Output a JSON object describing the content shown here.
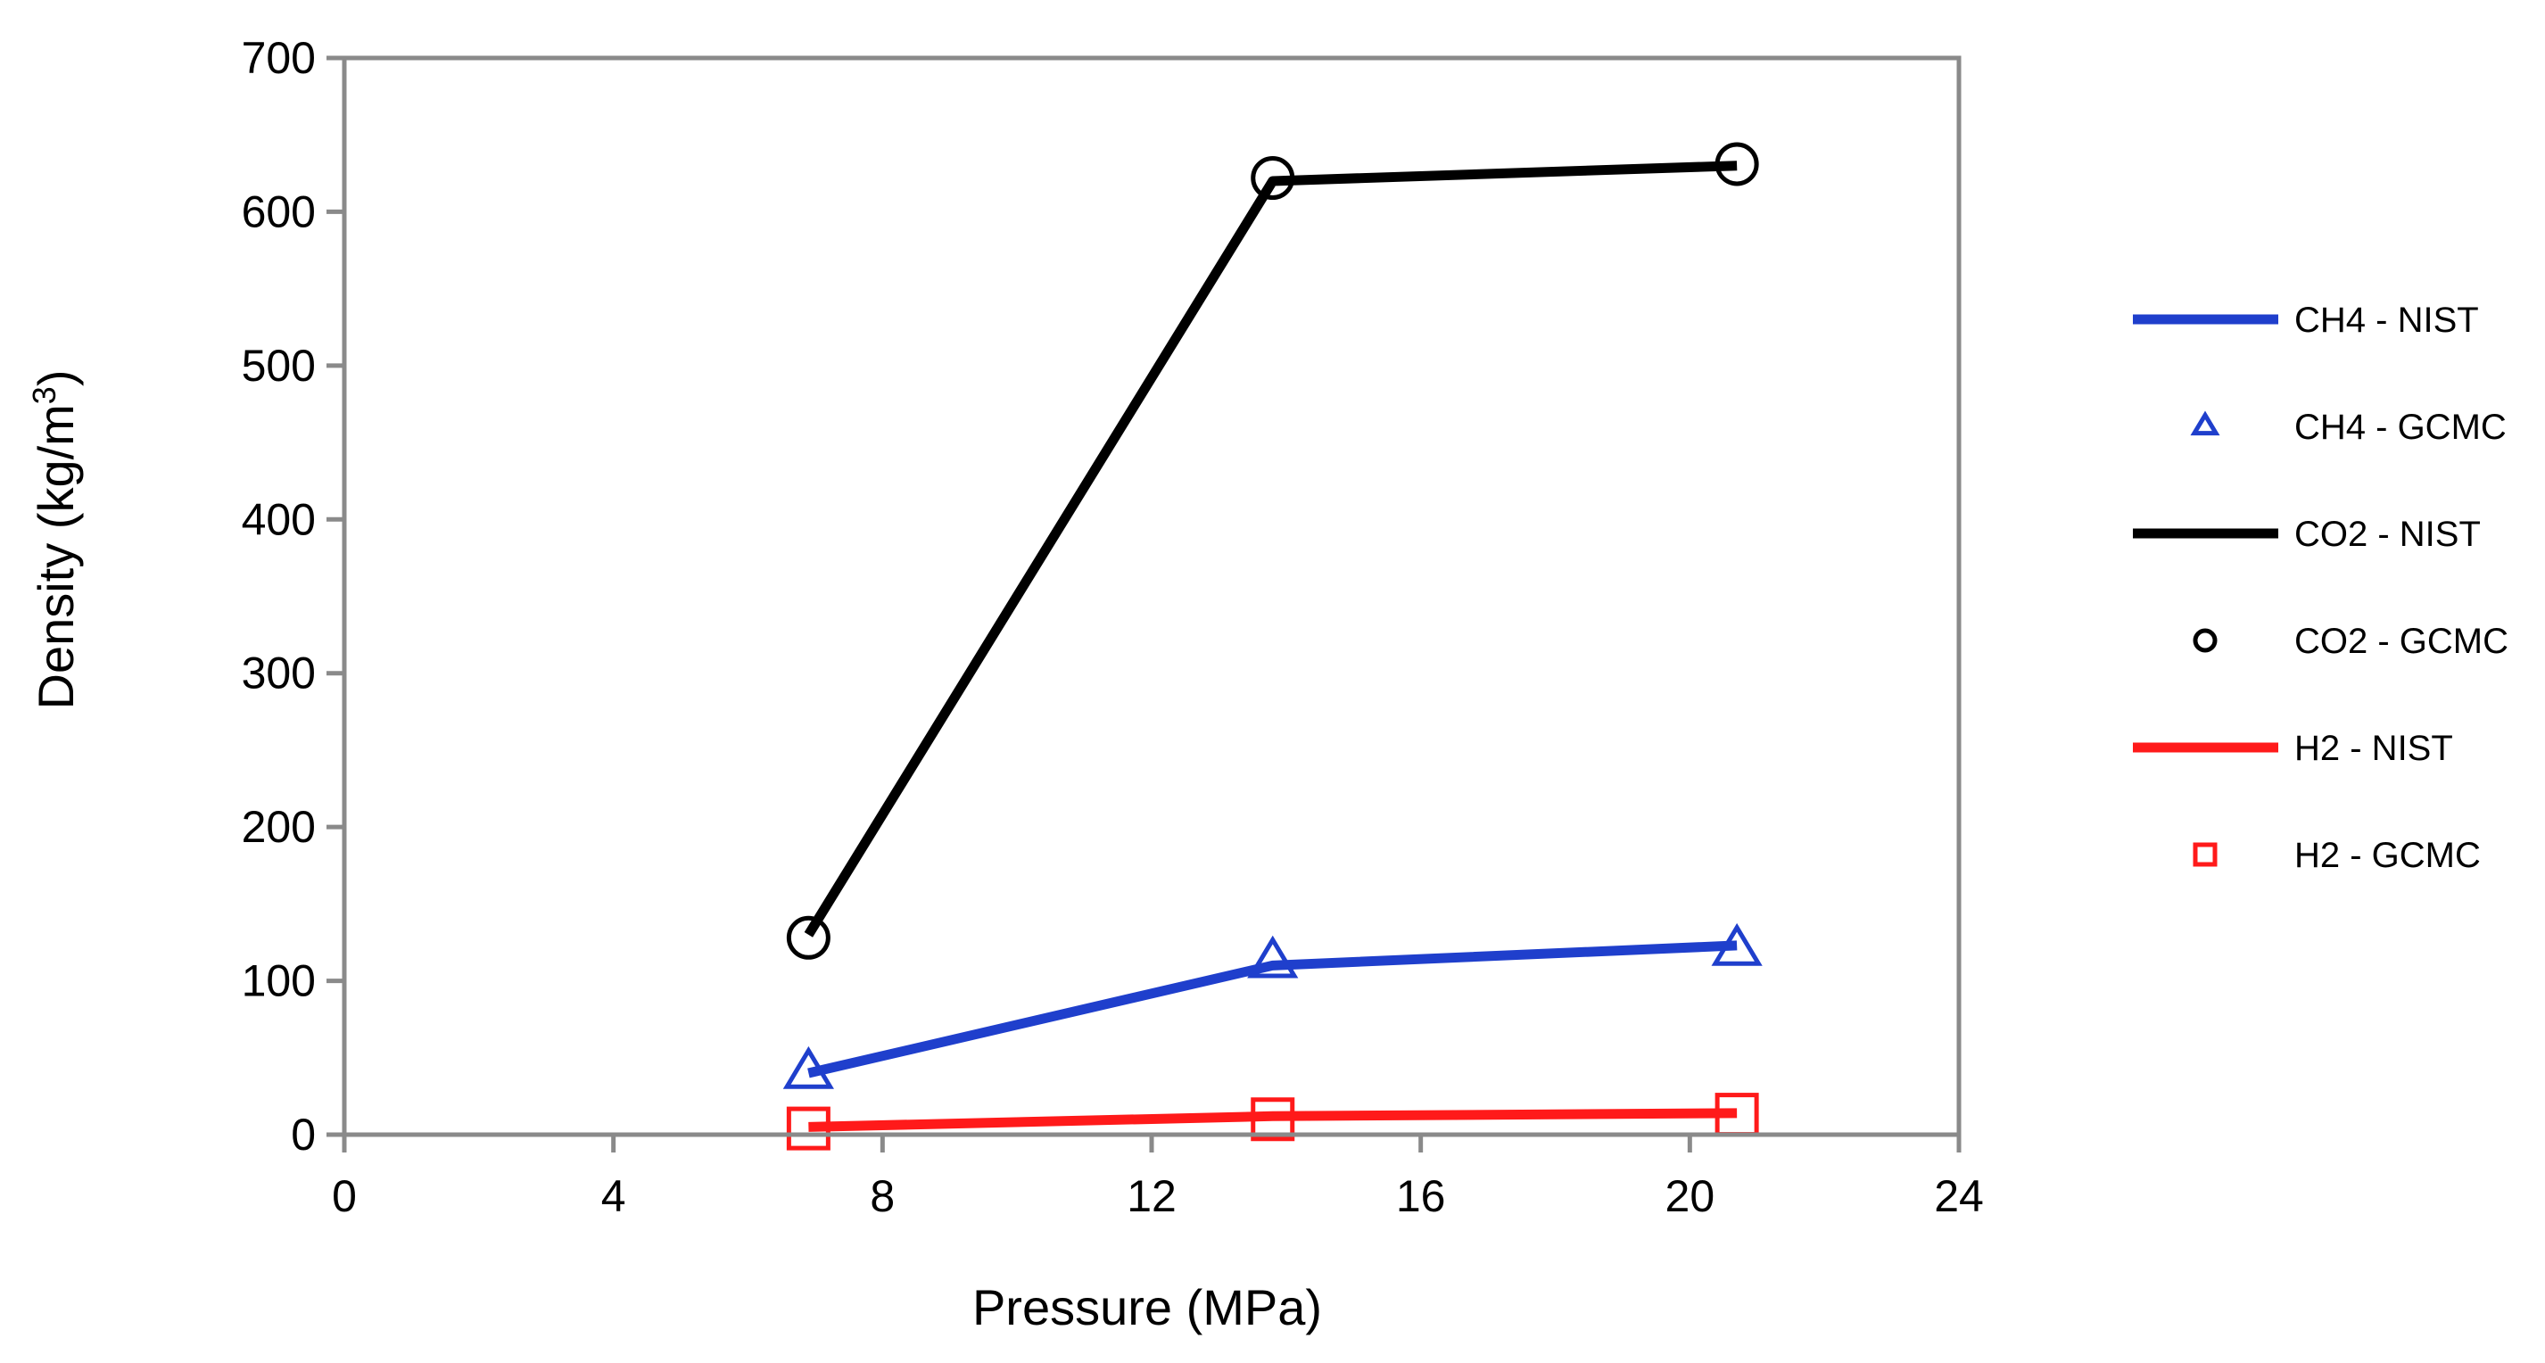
{
  "chart_data": {
    "type": "line",
    "title": "",
    "xlabel": "Pressure (MPa)",
    "ylabel_prefix": "Density (kg/m",
    "ylabel_superscript": "3",
    "ylabel_suffix": ")",
    "xlim": [
      0,
      24
    ],
    "ylim": [
      0,
      700
    ],
    "xticks": [
      0,
      4,
      8,
      12,
      16,
      20,
      24
    ],
    "yticks": [
      0,
      100,
      200,
      300,
      400,
      500,
      600,
      700
    ],
    "x_tick_labels": [
      "0",
      "4",
      "8",
      "12",
      "16",
      "20",
      "24"
    ],
    "y_tick_labels": [
      "0",
      "100",
      "200",
      "300",
      "400",
      "500",
      "600",
      "700"
    ],
    "grid": false,
    "legend_position": "right",
    "series": [
      {
        "name": "CH4 - NIST",
        "kind": "line",
        "color": "#1f3fcc",
        "x": [
          6.9,
          13.8,
          20.7
        ],
        "y": [
          40,
          110,
          123
        ]
      },
      {
        "name": "CH4 - GCMC",
        "kind": "marker",
        "marker": "triangle",
        "color": "#1f3fcc",
        "x": [
          6.9,
          13.8,
          20.7
        ],
        "y": [
          40,
          112,
          120
        ]
      },
      {
        "name": "CO2 - NIST",
        "kind": "line",
        "color": "#000000",
        "x": [
          6.9,
          13.8,
          20.7
        ],
        "y": [
          130,
          620,
          630
        ]
      },
      {
        "name": "CO2 - GCMC",
        "kind": "marker",
        "marker": "circle",
        "color": "#000000",
        "x": [
          6.9,
          13.8,
          20.7
        ],
        "y": [
          128,
          622,
          631
        ]
      },
      {
        "name": "H2 - NIST",
        "kind": "line",
        "color": "#ff1a1a",
        "x": [
          6.9,
          13.8,
          20.7
        ],
        "y": [
          5,
          12,
          14
        ]
      },
      {
        "name": "H2 - GCMC",
        "kind": "marker",
        "marker": "square",
        "color": "#ff1a1a",
        "x": [
          6.9,
          13.8,
          20.7
        ],
        "y": [
          4,
          10,
          13
        ]
      }
    ]
  }
}
